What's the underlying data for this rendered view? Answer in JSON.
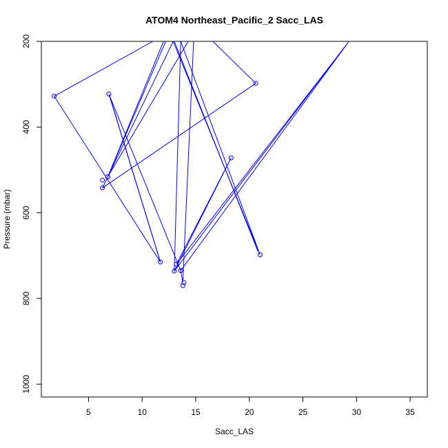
{
  "chart_data": {
    "type": "line",
    "title": "ATOM4 Northeast_Pacific_2 Sacc_LAS",
    "xlabel": "Sacc_LAS",
    "ylabel": "Pressure (mbar)",
    "xlim": [
      0.6,
      36.6
    ],
    "ylim": [
      1030,
      200
    ],
    "y_reversed": true,
    "x_ticks": [
      5,
      10,
      15,
      20,
      25,
      30,
      35
    ],
    "y_ticks": [
      200,
      400,
      600,
      800,
      1000
    ],
    "grid": false,
    "legend": "none",
    "color": "#0000ff",
    "points": [
      {
        "x": 1.8,
        "y": 328
      },
      {
        "x": 11.7,
        "y": 715
      },
      {
        "x": 6.9,
        "y": 323
      },
      {
        "x": 13.9,
        "y": 763
      },
      {
        "x": 12.9,
        "y": 200
      },
      {
        "x": 6.3,
        "y": 542
      },
      {
        "x": 20.6,
        "y": 298
      },
      {
        "x": 16.6,
        "y": 200
      },
      {
        "x": 6.3,
        "y": 524
      },
      {
        "x": 13.6,
        "y": 735
      },
      {
        "x": 29.3,
        "y": 200
      },
      {
        "x": 13.0,
        "y": 736
      },
      {
        "x": 18.3,
        "y": 472
      },
      {
        "x": 13.2,
        "y": 720
      },
      {
        "x": 21.0,
        "y": 698
      },
      {
        "x": 13.6,
        "y": 200
      },
      {
        "x": 6.8,
        "y": 516
      },
      {
        "x": 12.5,
        "y": 200
      },
      {
        "x": 6.8,
        "y": 516
      },
      {
        "x": 14.8,
        "y": 200
      },
      {
        "x": 13.8,
        "y": 770
      }
    ],
    "line_path": [
      {
        "x": 11.0,
        "y": 200
      },
      {
        "x": 1.8,
        "y": 328
      },
      {
        "x": 11.7,
        "y": 715
      },
      {
        "x": 6.9,
        "y": 323
      },
      {
        "x": 13.6,
        "y": 735
      },
      {
        "x": 29.3,
        "y": 200
      },
      {
        "x": 13.0,
        "y": 736
      },
      {
        "x": 18.3,
        "y": 472
      },
      {
        "x": 13.2,
        "y": 720
      },
      {
        "x": 29.3,
        "y": 200
      },
      {
        "x": 13.0,
        "y": 736
      },
      {
        "x": 13.6,
        "y": 200
      },
      {
        "x": 21.0,
        "y": 698
      },
      {
        "x": 12.9,
        "y": 200
      },
      {
        "x": 6.3,
        "y": 542
      },
      {
        "x": 20.6,
        "y": 298
      },
      {
        "x": 16.6,
        "y": 200
      }
    ],
    "line_path_2": [
      {
        "x": 12.2,
        "y": 200
      },
      {
        "x": 6.8,
        "y": 516
      },
      {
        "x": 14.3,
        "y": 200
      },
      {
        "x": 6.8,
        "y": 516
      },
      {
        "x": 12.0,
        "y": 200
      }
    ],
    "line_path_3": [
      {
        "x": 14.8,
        "y": 200
      },
      {
        "x": 13.8,
        "y": 762
      },
      {
        "x": 13.6,
        "y": 735
      }
    ],
    "line_path_4": [
      {
        "x": 7.0,
        "y": 330
      },
      {
        "x": 11.7,
        "y": 715
      }
    ],
    "line_path_5": [
      {
        "x": 13.0,
        "y": 200
      },
      {
        "x": 20.8,
        "y": 690
      }
    ]
  }
}
